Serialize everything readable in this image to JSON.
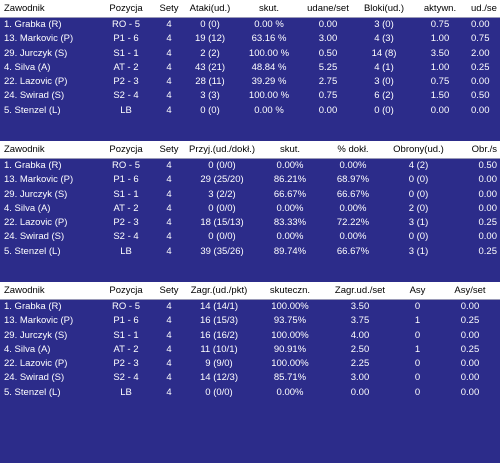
{
  "attack": {
    "headers": [
      "Zawodnik",
      "Pozycja",
      "Sety",
      "Ataki(ud.)",
      "skut.",
      "udane/set",
      "Bloki(ud.)",
      "aktywn.",
      "ud./se"
    ],
    "rows": [
      [
        "1. Grabka (R)",
        "RO - 5",
        "4",
        "0 (0)",
        "0.00 %",
        "0.00",
        "3 (0)",
        "0.75",
        "0.00"
      ],
      [
        "13. Markovic (P)",
        "P1 - 6",
        "4",
        "19 (12)",
        "63.16 %",
        "3.00",
        "4 (3)",
        "1.00",
        "0.75"
      ],
      [
        "29. Jurczyk (S)",
        "S1 - 1",
        "4",
        "2 (2)",
        "100.00 %",
        "0.50",
        "14 (8)",
        "3.50",
        "2.00"
      ],
      [
        "4. Silva (A)",
        "AT - 2",
        "4",
        "43 (21)",
        "48.84 %",
        "5.25",
        "4 (1)",
        "1.00",
        "0.25"
      ],
      [
        "22. Lazovic (P)",
        "P2 - 3",
        "4",
        "28 (11)",
        "39.29 %",
        "2.75",
        "3 (0)",
        "0.75",
        "0.00"
      ],
      [
        "24. Swirad (S)",
        "S2 - 4",
        "4",
        "3 (3)",
        "100.00 %",
        "0.75",
        "6 (2)",
        "1.50",
        "0.50"
      ],
      [
        "5. Stenzel (L)",
        "LB",
        "4",
        "0 (0)",
        "0.00 %",
        "0.00",
        "0 (0)",
        "0.00",
        "0.00"
      ]
    ]
  },
  "reception": {
    "headers": [
      "Zawodnik",
      "Pozycja",
      "Sety",
      "Przyj.(ud./dokł.)",
      "skut.",
      "% dokł.",
      "Obrony(ud.)",
      "Obr./s"
    ],
    "rows": [
      [
        "1. Grabka (R)",
        "RO - 5",
        "4",
        "0 (0/0)",
        "0.00%",
        "0.00%",
        "4 (2)",
        "0.50"
      ],
      [
        "13. Markovic (P)",
        "P1 - 6",
        "4",
        "29 (25/20)",
        "86.21%",
        "68.97%",
        "0 (0)",
        "0.00"
      ],
      [
        "29. Jurczyk (S)",
        "S1 - 1",
        "4",
        "3 (2/2)",
        "66.67%",
        "66.67%",
        "0 (0)",
        "0.00"
      ],
      [
        "4. Silva (A)",
        "AT - 2",
        "4",
        "0 (0/0)",
        "0.00%",
        "0.00%",
        "2 (0)",
        "0.00"
      ],
      [
        "22. Lazovic (P)",
        "P2 - 3",
        "4",
        "18 (15/13)",
        "83.33%",
        "72.22%",
        "3 (1)",
        "0.25"
      ],
      [
        "24. Swirad (S)",
        "S2 - 4",
        "4",
        "0 (0/0)",
        "0.00%",
        "0.00%",
        "0 (0)",
        "0.00"
      ],
      [
        "5. Stenzel (L)",
        "LB",
        "4",
        "39 (35/26)",
        "89.74%",
        "66.67%",
        "3 (1)",
        "0.25"
      ]
    ]
  },
  "serve": {
    "headers": [
      "Zawodnik",
      "Pozycja",
      "Sety",
      "Zagr.(ud./pkt)",
      "skuteczn.",
      "Zagr.ud./set",
      "Asy",
      "Asy/set"
    ],
    "rows": [
      [
        "1. Grabka (R)",
        "RO - 5",
        "4",
        "14 (14/1)",
        "100.00%",
        "3.50",
        "0",
        "0.00"
      ],
      [
        "13. Markovic (P)",
        "P1 - 6",
        "4",
        "16 (15/3)",
        "93.75%",
        "3.75",
        "1",
        "0.25"
      ],
      [
        "29. Jurczyk (S)",
        "S1 - 1",
        "4",
        "16 (16/2)",
        "100.00%",
        "4.00",
        "0",
        "0.00"
      ],
      [
        "4. Silva (A)",
        "AT - 2",
        "4",
        "11 (10/1)",
        "90.91%",
        "2.50",
        "1",
        "0.25"
      ],
      [
        "22. Lazovic (P)",
        "P2 - 3",
        "4",
        "9 (9/0)",
        "100.00%",
        "2.25",
        "0",
        "0.00"
      ],
      [
        "24. Swirad (S)",
        "S2 - 4",
        "4",
        "14 (12/3)",
        "85.71%",
        "3.00",
        "0",
        "0.00"
      ],
      [
        "5. Stenzel (L)",
        "LB",
        "4",
        "0 (0/0)",
        "0.00%",
        "0.00",
        "0",
        "0.00"
      ]
    ]
  }
}
